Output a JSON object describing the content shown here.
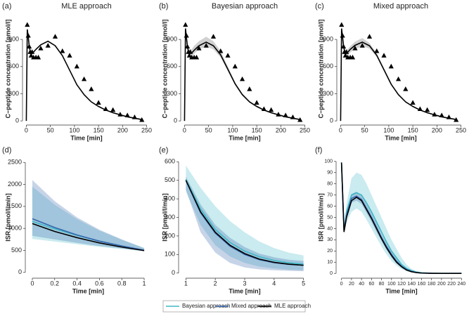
{
  "chart_data": [
    {
      "type": "line",
      "label": "(a)",
      "title": "MLE approach",
      "xlabel": "Time [min]",
      "ylabel": "C−peptide concentration [pmol/l]",
      "xlim": [
        -5,
        255
      ],
      "ylim": [
        -30,
        1180
      ],
      "xticks": [
        0,
        50,
        100,
        150,
        200,
        250
      ],
      "yticks": [
        0,
        300,
        600,
        900
      ],
      "x": [
        0,
        2,
        4,
        6,
        8,
        10,
        15,
        20,
        30,
        45,
        60,
        75,
        90,
        105,
        120,
        135,
        150,
        165,
        180,
        210,
        240
      ],
      "series": [
        {
          "color": "#000000",
          "values": [
            0,
            1010,
            930,
            830,
            770,
            750,
            760,
            790,
            840,
            880,
            830,
            720,
            560,
            400,
            290,
            210,
            160,
            120,
            90,
            45,
            15
          ]
        }
      ],
      "observed": {
        "color": "#000000",
        "x": [
          2,
          4,
          6,
          8,
          10,
          12,
          15,
          20,
          25,
          30,
          45,
          60,
          75,
          90,
          105,
          120,
          135,
          150,
          165,
          180,
          195,
          210,
          225,
          240
        ],
        "values": [
          1060,
          940,
          820,
          760,
          720,
          760,
          700,
          700,
          700,
          800,
          830,
          930,
          770,
          720,
          600,
          460,
          350,
          200,
          130,
          120,
          70,
          60,
          40,
          10
        ]
      }
    },
    {
      "type": "line",
      "label": "(b)",
      "title": "Bayesian approach",
      "xlabel": "Time [min]",
      "ylabel": "C−peptide concentration [pmol/l]",
      "xlim": [
        -5,
        255
      ],
      "ylim": [
        -30,
        1180
      ],
      "xticks": [
        0,
        50,
        100,
        150,
        200,
        250
      ],
      "yticks": [
        0,
        300,
        600,
        900
      ],
      "x": [
        0,
        2,
        4,
        6,
        8,
        10,
        15,
        20,
        30,
        45,
        60,
        75,
        90,
        105,
        120,
        135,
        150,
        165,
        180,
        210,
        240
      ],
      "series": [
        {
          "color": "#000000",
          "values": [
            0,
            1020,
            920,
            820,
            770,
            750,
            750,
            780,
            830,
            870,
            830,
            730,
            570,
            410,
            290,
            210,
            160,
            120,
            90,
            45,
            15
          ],
          "lower": [
            0,
            960,
            870,
            780,
            730,
            710,
            710,
            740,
            790,
            820,
            790,
            700,
            550,
            395,
            280,
            200,
            150,
            112,
            84,
            40,
            12
          ],
          "upper": [
            0,
            1080,
            970,
            860,
            810,
            790,
            790,
            830,
            880,
            930,
            880,
            770,
            600,
            430,
            305,
            222,
            170,
            128,
            96,
            50,
            18
          ]
        }
      ],
      "observed": {
        "color": "#000000",
        "x": [
          2,
          4,
          6,
          8,
          10,
          12,
          15,
          20,
          25,
          30,
          45,
          60,
          75,
          90,
          105,
          120,
          135,
          150,
          165,
          180,
          195,
          210,
          225,
          240
        ],
        "values": [
          1060,
          940,
          820,
          760,
          720,
          760,
          700,
          700,
          700,
          800,
          830,
          930,
          770,
          720,
          600,
          460,
          350,
          200,
          130,
          120,
          70,
          60,
          40,
          10
        ]
      }
    },
    {
      "type": "line",
      "label": "(c)",
      "title": "Mixed approach",
      "xlabel": "Time [min]",
      "ylabel": "C−peptide concentration [pmol/l]",
      "xlim": [
        -5,
        255
      ],
      "ylim": [
        -30,
        1180
      ],
      "xticks": [
        0,
        50,
        100,
        150,
        200,
        250
      ],
      "yticks": [
        0,
        300,
        600,
        900
      ],
      "x": [
        0,
        2,
        4,
        6,
        8,
        10,
        15,
        20,
        30,
        45,
        60,
        75,
        90,
        105,
        120,
        135,
        150,
        165,
        180,
        210,
        240
      ],
      "series": [
        {
          "color": "#000000",
          "values": [
            0,
            1020,
            930,
            830,
            775,
            755,
            760,
            790,
            835,
            870,
            830,
            725,
            565,
            405,
            290,
            210,
            160,
            120,
            90,
            45,
            15
          ],
          "lower": [
            0,
            980,
            890,
            800,
            745,
            725,
            725,
            755,
            795,
            825,
            800,
            705,
            550,
            395,
            282,
            203,
            153,
            114,
            86,
            42,
            13
          ],
          "upper": [
            0,
            1060,
            970,
            860,
            805,
            785,
            795,
            825,
            875,
            915,
            860,
            745,
            580,
            415,
            298,
            217,
            167,
            126,
            94,
            48,
            17
          ]
        }
      ],
      "observed": {
        "color": "#000000",
        "x": [
          2,
          4,
          6,
          8,
          10,
          12,
          15,
          20,
          25,
          30,
          45,
          60,
          75,
          90,
          105,
          120,
          135,
          150,
          165,
          180,
          195,
          210,
          225,
          240
        ],
        "values": [
          1060,
          940,
          820,
          760,
          720,
          760,
          700,
          700,
          700,
          800,
          830,
          930,
          770,
          720,
          600,
          460,
          350,
          200,
          130,
          120,
          70,
          60,
          40,
          10
        ]
      }
    },
    {
      "type": "line",
      "label": "(d)",
      "xlabel": "Time [min]",
      "ylabel": "ISR [pmol/l/min]",
      "xlim": [
        -0.05,
        1.05
      ],
      "ylim": [
        -100,
        2600
      ],
      "xticks": [
        0,
        0.2,
        0.4,
        0.6,
        0.8,
        1
      ],
      "yticks": [
        0,
        500,
        1000,
        1500,
        2000,
        2500
      ],
      "x": [
        0,
        0.2,
        0.4,
        0.6,
        0.8,
        1
      ],
      "series": [
        {
          "name": "Bayesian approach",
          "color": "#3fb8c6",
          "values": [
            1160,
            990,
            840,
            710,
            600,
            500
          ],
          "lower": [
            760,
            700,
            640,
            580,
            530,
            480
          ],
          "upper": [
            1950,
            1540,
            1210,
            950,
            740,
            560
          ]
        },
        {
          "name": "Mixed approach",
          "color": "#3565ad",
          "values": [
            1220,
            1020,
            850,
            710,
            600,
            505
          ],
          "lower": [
            830,
            750,
            670,
            600,
            545,
            490
          ],
          "upper": [
            2100,
            1620,
            1250,
            970,
            750,
            550
          ]
        },
        {
          "name": "MLE approach",
          "color": "#000000",
          "values": [
            1110,
            930,
            790,
            670,
            575,
            495
          ]
        }
      ]
    },
    {
      "type": "line",
      "label": "(e)",
      "xlabel": "Time [min]",
      "ylabel": "ISR [pmol/l/min]",
      "xlim": [
        0.8,
        5.2
      ],
      "ylim": [
        -20,
        620
      ],
      "xticks": [
        1,
        2,
        3,
        4,
        5
      ],
      "yticks": [
        0,
        100,
        200,
        300,
        400,
        500,
        600
      ],
      "x": [
        1,
        1.5,
        2,
        2.5,
        3,
        3.5,
        4,
        4.5,
        5
      ],
      "series": [
        {
          "color": "#3fb8c6",
          "values": [
            505,
            345,
            235,
            165,
            118,
            88,
            68,
            55,
            48
          ],
          "lower": [
            440,
            260,
            150,
            90,
            55,
            35,
            25,
            18,
            15
          ],
          "upper": [
            580,
            460,
            360,
            280,
            220,
            170,
            135,
            110,
            95
          ]
        },
        {
          "color": "#3565ad",
          "values": [
            500,
            325,
            215,
            145,
            100,
            72,
            56,
            47,
            42
          ],
          "lower": [
            450,
            220,
            110,
            55,
            30,
            20,
            15,
            12,
            10
          ],
          "upper": [
            520,
            370,
            260,
            190,
            140,
            105,
            85,
            72,
            65
          ]
        },
        {
          "color": "#000000",
          "values": [
            500,
            330,
            220,
            150,
            105,
            75,
            58,
            48,
            42
          ]
        }
      ]
    },
    {
      "type": "line",
      "label": "(f)",
      "xlabel": "Time [min]",
      "ylabel": "ISR [pmol/l/min]",
      "xlim": [
        -8,
        248
      ],
      "ylim": [
        -3,
        103
      ],
      "xticks": [
        0,
        20,
        40,
        60,
        80,
        100,
        120,
        140,
        160,
        180,
        200,
        220,
        240
      ],
      "yticks": [
        0,
        10,
        20,
        30,
        40,
        50,
        60,
        70,
        80,
        90,
        100
      ],
      "x": [
        0,
        5,
        10,
        20,
        30,
        40,
        50,
        60,
        70,
        80,
        90,
        100,
        110,
        120,
        130,
        140,
        150,
        160,
        180,
        200,
        220,
        240
      ],
      "series": [
        {
          "color": "#3fb8c6",
          "values": [
            99,
            39,
            55,
            70,
            72,
            70,
            63,
            55,
            46,
            37,
            28,
            20,
            14,
            8,
            4.5,
            2.5,
            1.2,
            0.6,
            0.2,
            0,
            0,
            0
          ],
          "lower": [
            99,
            36,
            45,
            55,
            58,
            55,
            48,
            40,
            32,
            24,
            17,
            11,
            7,
            4,
            2,
            1,
            0.4,
            0.2,
            0,
            0,
            0,
            0
          ],
          "upper": [
            99,
            40,
            62,
            85,
            90,
            88,
            80,
            70,
            60,
            50,
            40,
            30,
            22,
            14,
            8,
            4,
            2,
            1,
            0.3,
            0,
            0,
            0
          ]
        },
        {
          "color": "#3565ad",
          "values": [
            99,
            38,
            52,
            67,
            69,
            66,
            58,
            50,
            41,
            32,
            24,
            17,
            11,
            6.5,
            3.5,
            1.8,
            0.8,
            0.4,
            0.1,
            0,
            0,
            0
          ],
          "lower": [
            99,
            36,
            49,
            63,
            65,
            62,
            54,
            46,
            37,
            29,
            21,
            14,
            9,
            5,
            2.5,
            1.2,
            0.5,
            0.2,
            0,
            0,
            0,
            0
          ],
          "upper": [
            99,
            40,
            55,
            71,
            73,
            70,
            62,
            54,
            45,
            35,
            27,
            20,
            13,
            8,
            4.5,
            2.4,
            1.1,
            0.6,
            0.2,
            0,
            0,
            0
          ]
        },
        {
          "color": "#000000",
          "values": [
            99,
            37,
            50,
            65,
            68,
            65,
            57,
            49,
            40,
            31,
            23,
            16,
            10,
            6,
            3,
            1.5,
            0.7,
            0.3,
            0.1,
            0,
            0,
            0
          ]
        }
      ]
    }
  ]
}
